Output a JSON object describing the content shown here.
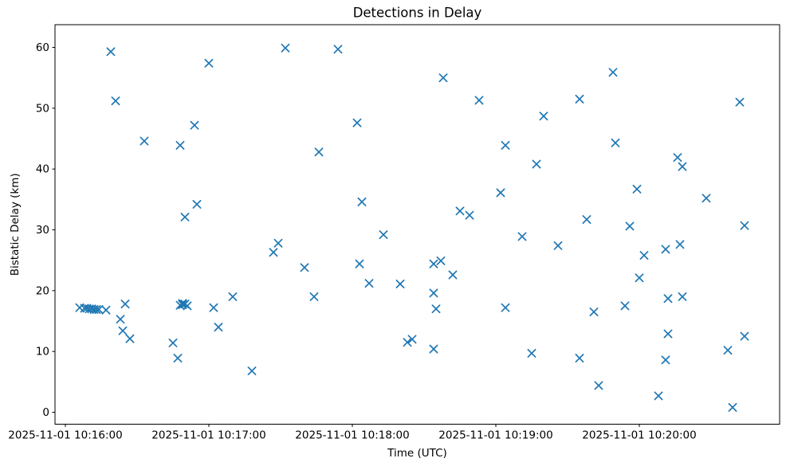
{
  "chart_data": {
    "type": "scatter",
    "title": "Detections in Delay",
    "xlabel": "Time (UTC)",
    "ylabel": "Bistatic Delay (km)",
    "marker": "x",
    "marker_color": "#1f77b4",
    "grid": false,
    "legend": "none",
    "date": "2025-11-01",
    "x_tick_labels": [
      "2025-11-01 10:16:00",
      "2025-11-01 10:17:00",
      "2025-11-01 10:18:00",
      "2025-11-01 10:19:00",
      "2025-11-01 10:20:00"
    ],
    "y_tick_labels": [
      "0",
      "10",
      "20",
      "30",
      "40",
      "50",
      "60"
    ],
    "y_ticks": [
      0,
      10,
      20,
      30,
      40,
      50,
      60
    ],
    "ylim": [
      -2.0,
      63.7
    ],
    "xlim": [
      "10:15:56",
      "10:20:59"
    ],
    "points": [
      [
        "10:16:06",
        17.2
      ],
      [
        "10:16:08",
        17.1
      ],
      [
        "10:16:09",
        17.1
      ],
      [
        "10:16:10",
        17.0
      ],
      [
        "10:16:11",
        17.0
      ],
      [
        "10:16:12",
        16.9
      ],
      [
        "10:16:13",
        16.9
      ],
      [
        "10:16:14",
        16.9
      ],
      [
        "10:16:17",
        16.8
      ],
      [
        "10:16:19",
        59.3
      ],
      [
        "10:16:21",
        51.2
      ],
      [
        "10:16:23",
        15.3
      ],
      [
        "10:16:24",
        13.4
      ],
      [
        "10:16:25",
        17.8
      ],
      [
        "10:16:27",
        12.1
      ],
      [
        "10:16:33",
        44.6
      ],
      [
        "10:16:45",
        11.4
      ],
      [
        "10:16:47",
        8.9
      ],
      [
        "10:16:48",
        43.9
      ],
      [
        "10:16:48",
        17.6
      ],
      [
        "10:16:49",
        17.9
      ],
      [
        "10:16:49",
        17.7
      ],
      [
        "10:16:50",
        17.8
      ],
      [
        "10:16:51",
        17.5
      ],
      [
        "10:16:50",
        32.1
      ],
      [
        "10:16:54",
        47.2
      ],
      [
        "10:16:55",
        34.2
      ],
      [
        "10:17:00",
        57.4
      ],
      [
        "10:17:02",
        17.2
      ],
      [
        "10:17:04",
        14.0
      ],
      [
        "10:17:10",
        19.0
      ],
      [
        "10:17:18",
        6.8
      ],
      [
        "10:17:27",
        26.3
      ],
      [
        "10:17:29",
        27.8
      ],
      [
        "10:17:32",
        59.9
      ],
      [
        "10:17:40",
        23.8
      ],
      [
        "10:17:44",
        19.0
      ],
      [
        "10:17:46",
        42.8
      ],
      [
        "10:17:54",
        59.7
      ],
      [
        "10:18:02",
        47.6
      ],
      [
        "10:18:03",
        24.4
      ],
      [
        "10:18:04",
        34.6
      ],
      [
        "10:18:07",
        21.2
      ],
      [
        "10:18:13",
        29.2
      ],
      [
        "10:18:20",
        21.1
      ],
      [
        "10:18:23",
        11.5
      ],
      [
        "10:18:25",
        12.0
      ],
      [
        "10:18:34",
        19.6
      ],
      [
        "10:18:34",
        10.4
      ],
      [
        "10:18:34",
        24.4
      ],
      [
        "10:18:35",
        17.0
      ],
      [
        "10:18:37",
        24.9
      ],
      [
        "10:18:38",
        55.0
      ],
      [
        "10:18:42",
        22.6
      ],
      [
        "10:18:45",
        33.1
      ],
      [
        "10:18:49",
        32.4
      ],
      [
        "10:18:53",
        51.3
      ],
      [
        "10:19:02",
        36.1
      ],
      [
        "10:19:04",
        17.2
      ],
      [
        "10:19:04",
        43.9
      ],
      [
        "10:19:11",
        28.9
      ],
      [
        "10:19:15",
        9.7
      ],
      [
        "10:19:17",
        40.8
      ],
      [
        "10:19:20",
        48.7
      ],
      [
        "10:19:26",
        27.4
      ],
      [
        "10:19:35",
        51.5
      ],
      [
        "10:19:35",
        8.9
      ],
      [
        "10:19:38",
        31.7
      ],
      [
        "10:19:41",
        16.5
      ],
      [
        "10:19:43",
        4.4
      ],
      [
        "10:19:49",
        55.9
      ],
      [
        "10:19:50",
        44.3
      ],
      [
        "10:19:54",
        17.5
      ],
      [
        "10:19:56",
        30.6
      ],
      [
        "10:19:59",
        36.7
      ],
      [
        "10:20:00",
        22.1
      ],
      [
        "10:20:02",
        25.8
      ],
      [
        "10:20:08",
        2.7
      ],
      [
        "10:20:11",
        26.8
      ],
      [
        "10:20:11",
        8.6
      ],
      [
        "10:20:12",
        12.9
      ],
      [
        "10:20:12",
        18.7
      ],
      [
        "10:20:16",
        41.9
      ],
      [
        "10:20:17",
        27.6
      ],
      [
        "10:20:18",
        40.4
      ],
      [
        "10:20:18",
        19.0
      ],
      [
        "10:20:28",
        35.2
      ],
      [
        "10:20:37",
        10.2
      ],
      [
        "10:20:39",
        0.8
      ],
      [
        "10:20:42",
        51.0
      ],
      [
        "10:20:44",
        12.5
      ],
      [
        "10:20:44",
        30.7
      ]
    ]
  }
}
